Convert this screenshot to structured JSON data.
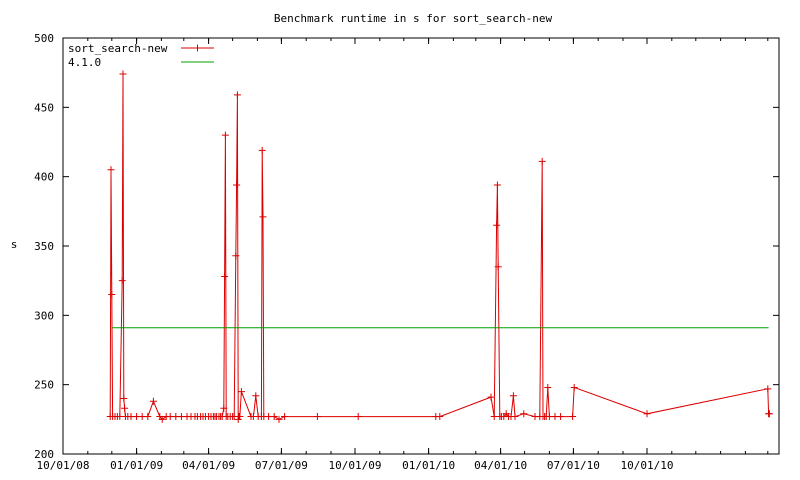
{
  "chart_data": {
    "type": "line",
    "title": "Benchmark runtime in s for sort_search-new",
    "xlabel": "",
    "ylabel": "s",
    "xlim": [
      "2008-10-01",
      "2011-03-15"
    ],
    "ylim": [
      200,
      500
    ],
    "x_ticks": [
      {
        "date": "2008-10-01",
        "label": "10/01/08"
      },
      {
        "date": "2009-01-01",
        "label": "01/01/09"
      },
      {
        "date": "2009-04-01",
        "label": "04/01/09"
      },
      {
        "date": "2009-07-01",
        "label": "07/01/09"
      },
      {
        "date": "2009-10-01",
        "label": "10/01/09"
      },
      {
        "date": "2010-01-01",
        "label": "01/01/10"
      },
      {
        "date": "2010-04-01",
        "label": "04/01/10"
      },
      {
        "date": "2010-07-01",
        "label": "07/01/10"
      },
      {
        "date": "2010-10-01",
        "label": "10/01/10"
      }
    ],
    "y_ticks": [
      200,
      250,
      300,
      350,
      400,
      450,
      500
    ],
    "grid": false,
    "legend_position": "top-left",
    "series": [
      {
        "name": "sort_search-new",
        "color": "#dd0000",
        "marker": "plus",
        "points": [
          [
            "2008-11-29",
            227
          ],
          [
            "2008-11-30",
            405
          ],
          [
            "2008-12-01",
            315
          ],
          [
            "2008-12-02",
            227
          ],
          [
            "2008-12-05",
            227
          ],
          [
            "2008-12-08",
            227
          ],
          [
            "2008-12-11",
            227
          ],
          [
            "2008-12-14",
            325
          ],
          [
            "2008-12-15",
            474
          ],
          [
            "2008-12-16",
            240
          ],
          [
            "2008-12-17",
            233
          ],
          [
            "2008-12-18",
            227
          ],
          [
            "2008-12-21",
            227
          ],
          [
            "2008-12-25",
            227
          ],
          [
            "2009-01-01",
            227
          ],
          [
            "2009-01-08",
            227
          ],
          [
            "2009-01-15",
            227
          ],
          [
            "2009-01-22",
            238
          ],
          [
            "2009-01-30",
            227
          ],
          [
            "2009-02-02",
            225
          ],
          [
            "2009-02-07",
            227
          ],
          [
            "2009-02-12",
            227
          ],
          [
            "2009-02-19",
            227
          ],
          [
            "2009-02-26",
            227
          ],
          [
            "2009-03-05",
            227
          ],
          [
            "2009-03-10",
            227
          ],
          [
            "2009-03-15",
            227
          ],
          [
            "2009-03-18",
            227
          ],
          [
            "2009-03-22",
            227
          ],
          [
            "2009-03-25",
            227
          ],
          [
            "2009-03-28",
            227
          ],
          [
            "2009-04-01",
            227
          ],
          [
            "2009-04-04",
            227
          ],
          [
            "2009-04-07",
            227
          ],
          [
            "2009-04-09",
            227
          ],
          [
            "2009-04-11",
            227
          ],
          [
            "2009-04-14",
            227
          ],
          [
            "2009-04-16",
            227
          ],
          [
            "2009-04-18",
            227
          ],
          [
            "2009-04-20",
            233
          ],
          [
            "2009-04-21",
            328
          ],
          [
            "2009-04-22",
            430
          ],
          [
            "2009-04-23",
            227
          ],
          [
            "2009-04-25",
            227
          ],
          [
            "2009-04-28",
            227
          ],
          [
            "2009-05-01",
            227
          ],
          [
            "2009-05-03",
            227
          ],
          [
            "2009-05-05",
            343
          ],
          [
            "2009-05-06",
            394
          ],
          [
            "2009-05-07",
            459
          ],
          [
            "2009-05-08",
            225
          ],
          [
            "2009-05-09",
            227
          ],
          [
            "2009-05-10",
            227
          ],
          [
            "2009-05-12",
            245
          ],
          [
            "2009-05-24",
            227
          ],
          [
            "2009-05-27",
            227
          ],
          [
            "2009-05-30",
            242
          ],
          [
            "2009-06-02",
            227
          ],
          [
            "2009-06-06",
            227
          ],
          [
            "2009-06-07",
            419
          ],
          [
            "2009-06-08",
            371
          ],
          [
            "2009-06-09",
            227
          ],
          [
            "2009-06-15",
            227
          ],
          [
            "2009-06-22",
            227
          ],
          [
            "2009-06-28",
            225
          ],
          [
            "2009-07-05",
            227
          ],
          [
            "2009-08-15",
            227
          ],
          [
            "2009-10-05",
            227
          ],
          [
            "2010-01-10",
            227
          ],
          [
            "2010-01-15",
            227
          ],
          [
            "2010-03-20",
            241
          ],
          [
            "2010-03-24",
            227
          ],
          [
            "2010-03-27",
            365
          ],
          [
            "2010-03-28",
            394
          ],
          [
            "2010-03-29",
            335
          ],
          [
            "2010-03-31",
            227
          ],
          [
            "2010-04-02",
            227
          ],
          [
            "2010-04-05",
            227
          ],
          [
            "2010-04-08",
            229
          ],
          [
            "2010-04-11",
            227
          ],
          [
            "2010-04-14",
            227
          ],
          [
            "2010-04-17",
            242
          ],
          [
            "2010-04-19",
            227
          ],
          [
            "2010-04-30",
            229
          ],
          [
            "2010-05-14",
            227
          ],
          [
            "2010-05-20",
            227
          ],
          [
            "2010-05-23",
            411
          ],
          [
            "2010-05-24",
            227
          ],
          [
            "2010-05-26",
            227
          ],
          [
            "2010-05-28",
            227
          ],
          [
            "2010-05-30",
            248
          ],
          [
            "2010-06-01",
            227
          ],
          [
            "2010-06-08",
            227
          ],
          [
            "2010-06-15",
            227
          ],
          [
            "2010-06-30",
            227
          ],
          [
            "2010-07-02",
            248
          ],
          [
            "2010-10-01",
            229
          ],
          [
            "2011-03-01",
            247
          ],
          [
            "2011-03-02",
            229
          ],
          [
            "2011-03-03",
            229
          ]
        ]
      },
      {
        "name": "4.1.0",
        "color": "#00a000",
        "marker": "none",
        "points": [
          [
            "2008-12-01",
            291
          ],
          [
            "2011-03-02",
            291
          ]
        ]
      }
    ]
  }
}
